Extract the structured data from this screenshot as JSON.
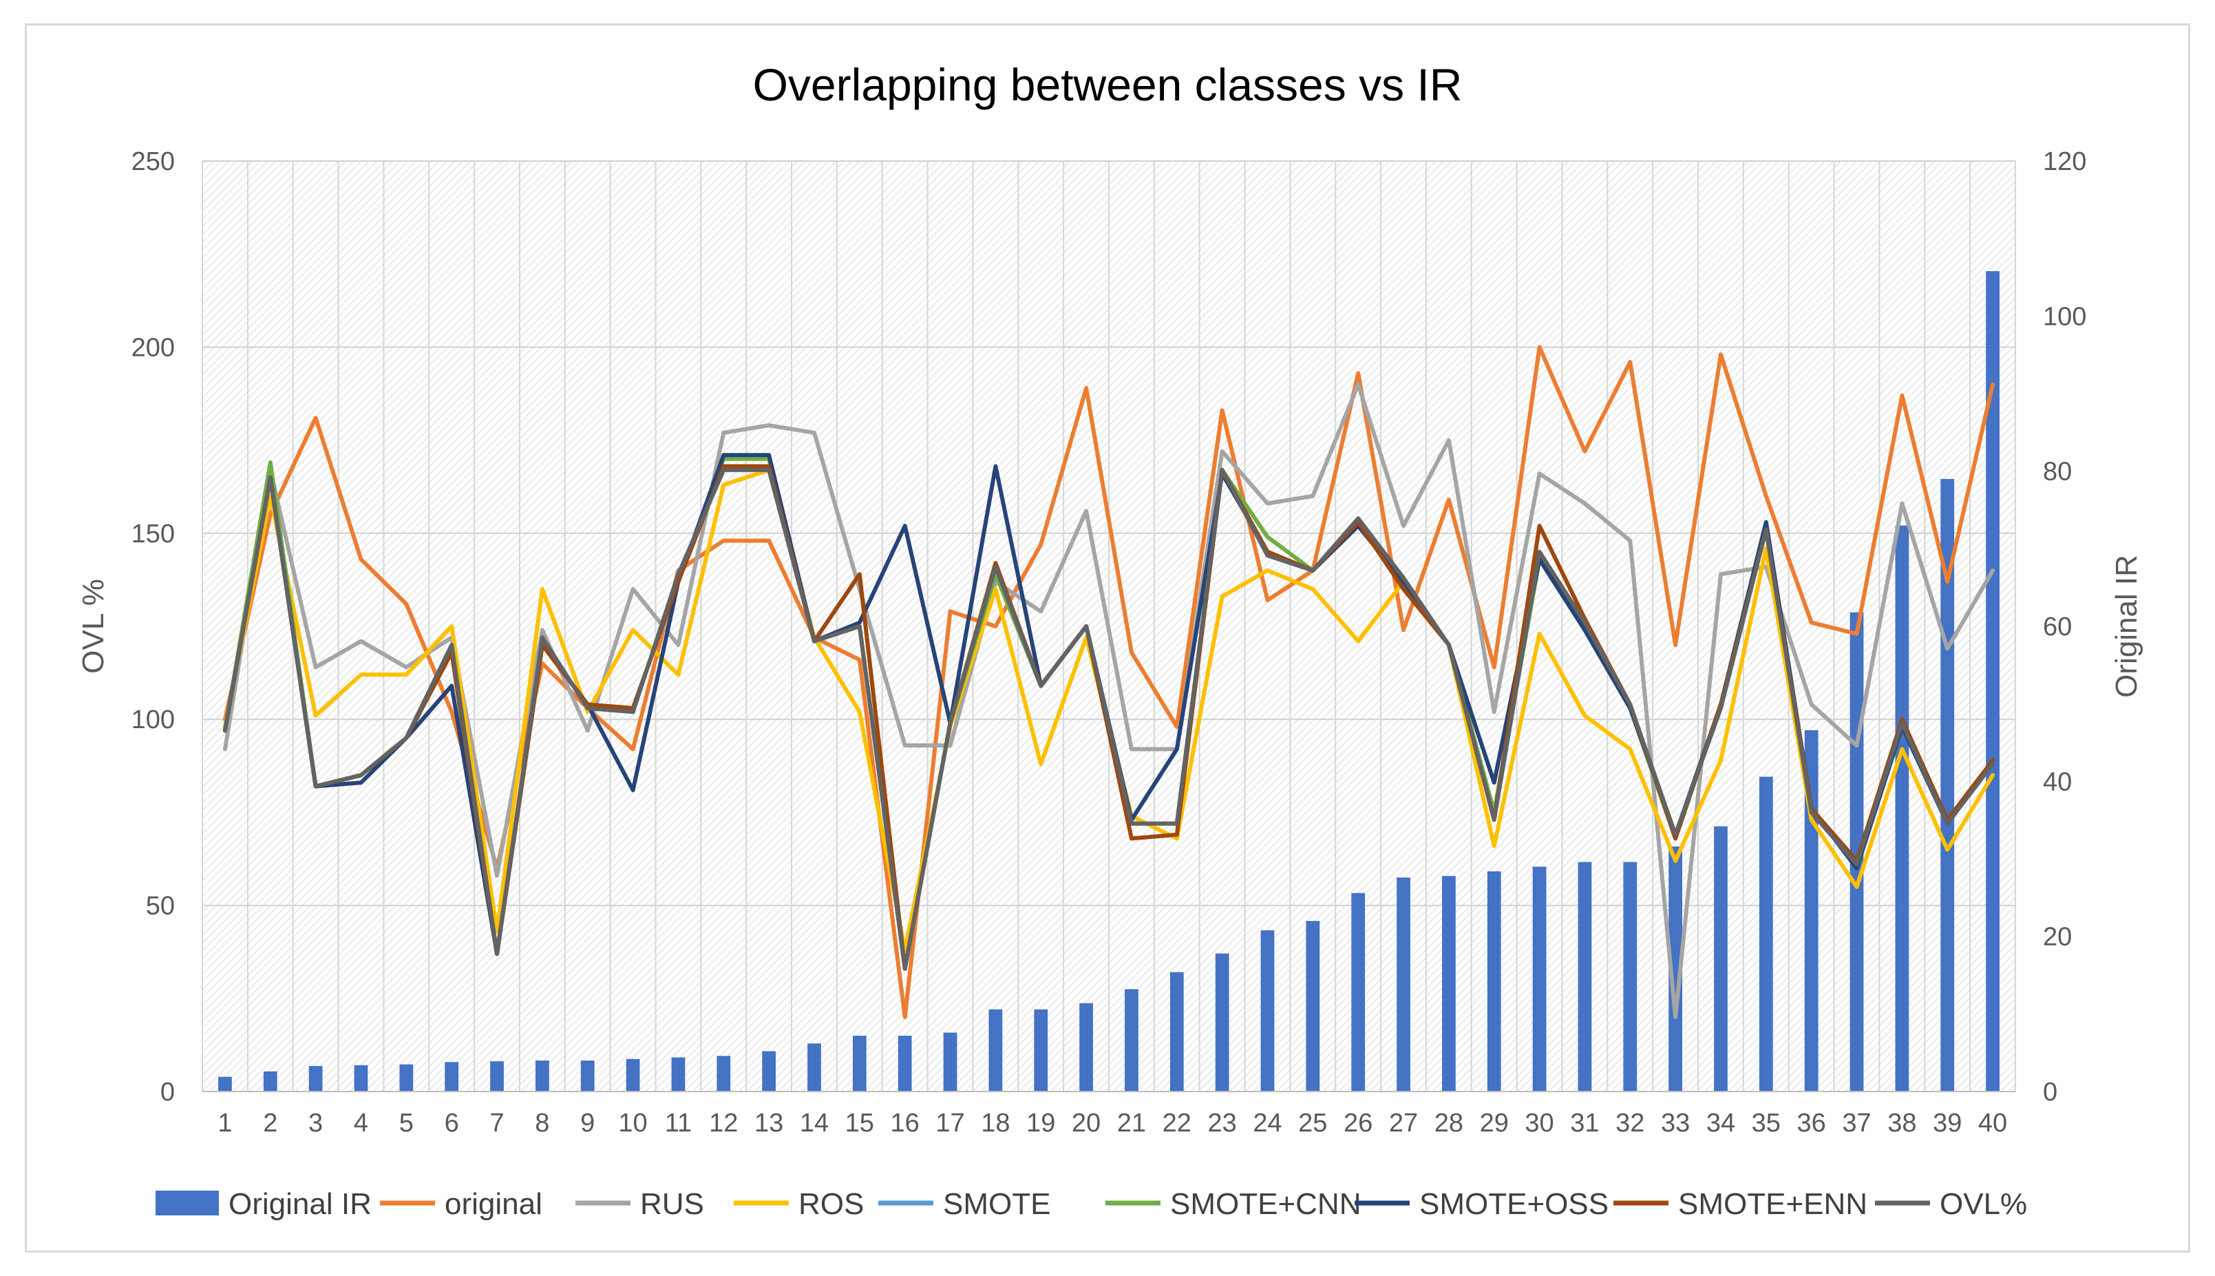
{
  "chart_data": {
    "type": "bar+line",
    "title": "Overlapping between classes vs IR",
    "ylabel": "OVL %",
    "y2label": "Original IR",
    "ylim": [
      0,
      250
    ],
    "y2lim": [
      0,
      120
    ],
    "yticks": [
      "0",
      "50",
      "100",
      "150",
      "200",
      "250"
    ],
    "y2ticks": [
      "0",
      "20",
      "40",
      "60",
      "80",
      "100",
      "120"
    ],
    "grid": true,
    "legend_position": "bottom",
    "categories": [
      "1",
      "2",
      "3",
      "4",
      "5",
      "6",
      "7",
      "8",
      "9",
      "10",
      "11",
      "12",
      "13",
      "14",
      "15",
      "16",
      "17",
      "18",
      "19",
      "20",
      "21",
      "22",
      "23",
      "24",
      "25",
      "26",
      "27",
      "28",
      "29",
      "30",
      "31",
      "32",
      "33",
      "34",
      "35",
      "36",
      "37",
      "38",
      "39",
      "40"
    ],
    "bars": {
      "name": "Original IR",
      "axis": "right",
      "color": "#4472c4",
      "values": [
        1.9,
        2.6,
        3.3,
        3.4,
        3.5,
        3.8,
        3.9,
        4.0,
        4.0,
        4.2,
        4.4,
        4.6,
        5.2,
        6.2,
        7.2,
        7.2,
        7.6,
        10.6,
        10.6,
        11.4,
        13.2,
        15.4,
        17.8,
        20.8,
        22.0,
        25.6,
        27.6,
        27.8,
        28.4,
        29.0,
        29.6,
        29.6,
        31.6,
        34.2,
        40.6,
        46.6,
        61.8,
        73.0,
        79.0,
        105.8
      ]
    },
    "series": [
      {
        "name": "original",
        "color": "#ed7d31",
        "values": [
          100,
          155,
          181,
          143,
          131,
          102,
          60,
          115,
          103,
          92,
          140,
          148,
          148,
          122,
          116,
          20,
          129,
          125,
          147,
          189,
          118,
          98,
          183,
          132,
          140,
          193,
          124,
          159,
          114,
          200,
          172,
          196,
          120,
          198,
          160,
          126,
          123,
          187,
          137,
          190
        ]
      },
      {
        "name": "RUS",
        "color": "#a5a5a5",
        "values": [
          92,
          167,
          114,
          121,
          114,
          122,
          58,
          124,
          97,
          135,
          120,
          177,
          179,
          177,
          135,
          93,
          93,
          137,
          129,
          156,
          92,
          92,
          172,
          158,
          160,
          190,
          152,
          175,
          102,
          166,
          158,
          148,
          20,
          139,
          141,
          104,
          93,
          158,
          119,
          140
        ]
      },
      {
        "name": "ROS",
        "color": "#ffc000",
        "values": [
          98,
          160,
          101,
          112,
          112,
          125,
          43,
          135,
          102,
          124,
          112,
          163,
          167,
          122,
          102,
          38,
          98,
          135,
          88,
          122,
          74,
          68,
          133,
          140,
          135,
          121,
          137,
          120,
          66,
          123,
          101,
          92,
          62,
          89,
          146,
          73,
          55,
          92,
          65,
          85
        ]
      },
      {
        "name": "SMOTE",
        "color": "#5b9bd5",
        "values": [
          97,
          165,
          82,
          85,
          95,
          118,
          37,
          120,
          104,
          103,
          137,
          170,
          170,
          121,
          125,
          33,
          99,
          139,
          109,
          125,
          72,
          72,
          167,
          145,
          140,
          152,
          137,
          120,
          75,
          143,
          124,
          103,
          68,
          104,
          151,
          76,
          60,
          98,
          72,
          89
        ]
      },
      {
        "name": "SMOTE+CNN",
        "color": "#70ad47",
        "values": [
          97,
          169,
          82,
          85,
          95,
          118,
          37,
          120,
          104,
          103,
          137,
          170,
          170,
          121,
          125,
          33,
          99,
          139,
          109,
          125,
          72,
          72,
          167,
          149,
          140,
          152,
          137,
          120,
          75,
          143,
          124,
          103,
          68,
          104,
          151,
          76,
          60,
          98,
          72,
          89
        ]
      },
      {
        "name": "SMOTE+OSS",
        "color": "#264478",
        "values": [
          97,
          165,
          82,
          83,
          95,
          109,
          37,
          120,
          104,
          81,
          137,
          171,
          171,
          121,
          126,
          152,
          99,
          168,
          109,
          125,
          73,
          92,
          166,
          145,
          140,
          152,
          137,
          120,
          83,
          143,
          124,
          103,
          69,
          104,
          153,
          76,
          60,
          98,
          72,
          89
        ]
      },
      {
        "name": "SMOTE+ENN",
        "color": "#9e480e",
        "values": [
          97,
          165,
          82,
          85,
          95,
          118,
          37,
          120,
          104,
          103,
          137,
          168,
          168,
          121,
          139,
          33,
          99,
          142,
          109,
          125,
          68,
          69,
          167,
          145,
          140,
          153,
          135,
          120,
          73,
          152,
          127,
          104,
          68,
          104,
          151,
          76,
          62,
          100,
          73,
          89
        ]
      },
      {
        "name": "OVL%",
        "color": "#636363",
        "values": [
          97,
          165,
          82,
          85,
          95,
          120,
          37,
          122,
          103,
          102,
          139,
          167,
          167,
          121,
          125,
          33,
          99,
          141,
          109,
          125,
          72,
          72,
          167,
          144,
          140,
          154,
          138,
          120,
          73,
          145,
          126,
          104,
          69,
          103,
          151,
          75,
          61,
          99,
          72,
          88
        ]
      }
    ],
    "legend": [
      "Original IR",
      "original",
      "RUS",
      "ROS",
      "SMOTE",
      "SMOTE+CNN",
      "SMOTE+OSS",
      "SMOTE+ENN",
      "OVL%"
    ]
  }
}
